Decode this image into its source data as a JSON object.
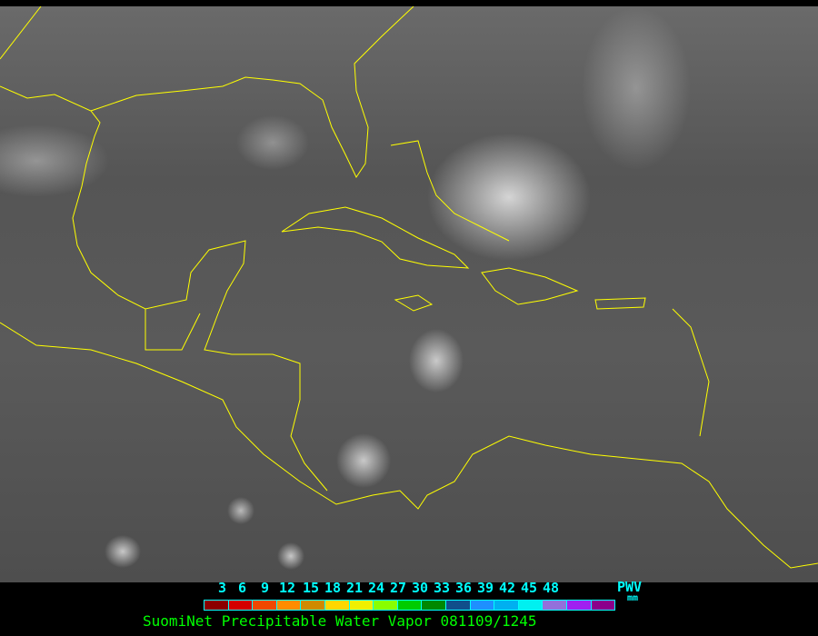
{
  "legend": {
    "ticks": [
      "3",
      "6",
      "9",
      "12",
      "15",
      "18",
      "21",
      "24",
      "27",
      "30",
      "33",
      "36",
      "39",
      "42",
      "45",
      "48"
    ],
    "colors": [
      "#8b0000",
      "#d40000",
      "#f04800",
      "#ff8c00",
      "#d08a00",
      "#ffd700",
      "#f0f000",
      "#88ff00",
      "#00cc00",
      "#008800",
      "#104e8b",
      "#1e90ff",
      "#00b0f0",
      "#00f0f0",
      "#9370db",
      "#a020f0",
      "#8b008b"
    ],
    "unit_label": "PWV",
    "unit": "mm"
  },
  "title": "SuomiNet Precipitable Water Vapor 081109/1245",
  "colors": {
    "coastline": "#ffff00",
    "legend_text": "#00ffff",
    "title_text": "#00ff00"
  }
}
